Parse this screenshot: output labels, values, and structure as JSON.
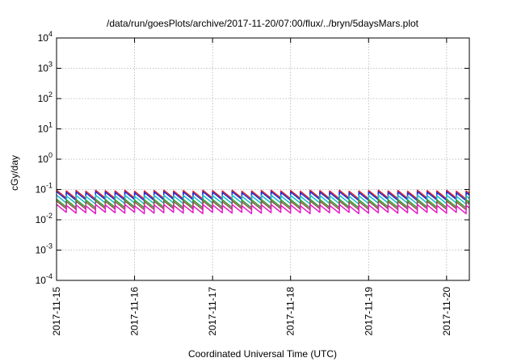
{
  "chart_data": {
    "type": "line",
    "title": "/data/run/goesPlots/archive/2017-11-20/07:00/flux/../bryn/5daysMars.plot",
    "xlabel": "Coordinated Universal Time (UTC)",
    "ylabel": "cGy/day",
    "yscale": "log",
    "ylim": [
      0.0001,
      10000
    ],
    "xlim": [
      "2017-11-15",
      "2017-11-20 07:00"
    ],
    "grid": true,
    "y_ticks": [
      {
        "base": "10",
        "exp": "-4"
      },
      {
        "base": "10",
        "exp": "-3"
      },
      {
        "base": "10",
        "exp": "-2"
      },
      {
        "base": "10",
        "exp": "-1"
      },
      {
        "base": "10",
        "exp": "0"
      },
      {
        "base": "10",
        "exp": "1"
      },
      {
        "base": "10",
        "exp": "2"
      },
      {
        "base": "10",
        "exp": "3"
      },
      {
        "base": "10",
        "exp": "4"
      }
    ],
    "x_ticks": [
      "2017-11-15",
      "2017-11-16",
      "2017-11-17",
      "2017-11-18",
      "2017-11-19",
      "2017-11-20"
    ],
    "pattern": {
      "period_hours": 3,
      "decay_factor_per_period": 0.55
    },
    "series": [
      {
        "color": "#d62728",
        "peak_values": [
          0.095,
          0.09,
          0.093,
          0.088,
          0.095,
          0.092,
          0.09,
          0.095,
          0.088,
          0.09,
          0.093
        ]
      },
      {
        "color": "#1f2bd6",
        "peak_values": [
          0.085,
          0.08,
          0.083,
          0.078,
          0.085,
          0.082,
          0.08,
          0.085,
          0.078,
          0.08,
          0.083
        ]
      },
      {
        "color": "#17becf",
        "peak_values": [
          0.065,
          0.062,
          0.064,
          0.06,
          0.065,
          0.063,
          0.062,
          0.065,
          0.06,
          0.062,
          0.064
        ]
      },
      {
        "color": "#2ca02c",
        "peak_values": [
          0.048,
          0.046,
          0.047,
          0.045,
          0.048,
          0.047,
          0.046,
          0.048,
          0.045,
          0.046,
          0.047
        ]
      },
      {
        "color": "#8c564b",
        "peak_values": [
          0.042,
          0.04,
          0.041,
          0.039,
          0.042,
          0.041,
          0.04,
          0.042,
          0.039,
          0.04,
          0.041
        ]
      },
      {
        "color": "#e619c8",
        "peak_values": [
          0.032,
          0.03,
          0.031,
          0.029,
          0.032,
          0.031,
          0.03,
          0.032,
          0.029,
          0.03,
          0.031
        ]
      }
    ]
  }
}
